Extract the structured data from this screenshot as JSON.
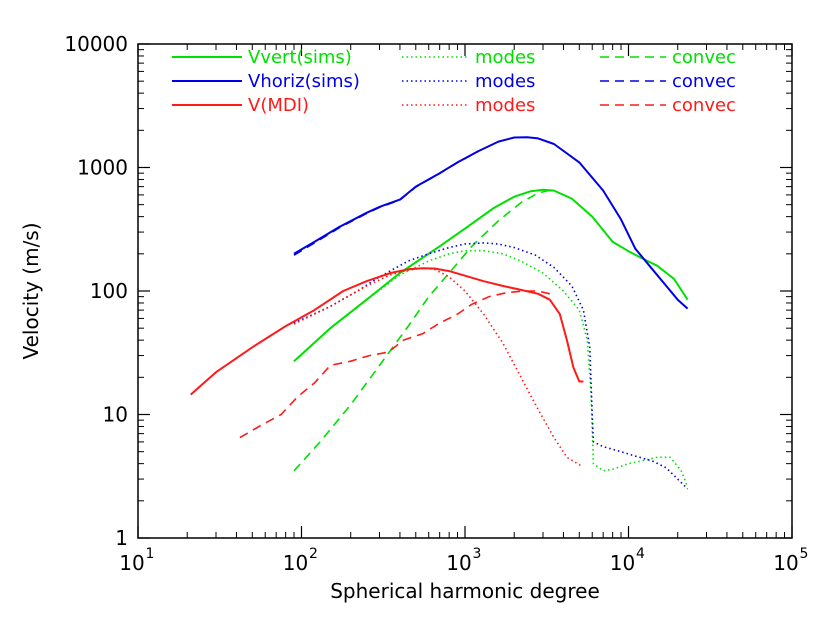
{
  "chart_data": {
    "type": "line",
    "xscale": "log",
    "yscale": "log",
    "xlim": [
      10,
      100000
    ],
    "ylim": [
      1,
      10000
    ],
    "xlabel": "Spherical harmonic degree",
    "ylabel": "Velocity (m/s)",
    "x_ticks": [
      {
        "value": 10,
        "base": "10",
        "exp": "1"
      },
      {
        "value": 100,
        "base": "10",
        "exp": "2"
      },
      {
        "value": 1000,
        "base": "10",
        "exp": "3"
      },
      {
        "value": 10000,
        "base": "10",
        "exp": "4"
      },
      {
        "value": 100000,
        "base": "10",
        "exp": "5"
      }
    ],
    "y_ticks": [
      {
        "value": 1,
        "label": "1"
      },
      {
        "value": 10,
        "label": "10"
      },
      {
        "value": 100,
        "label": "100"
      },
      {
        "value": 1000,
        "label": "1000"
      },
      {
        "value": 10000,
        "label": "10000"
      }
    ],
    "legend": {
      "placement": "top-left",
      "rows": [
        {
          "color": "#00e000",
          "solid": "Vvert(sims)",
          "dotted": "modes",
          "dashed": "convec"
        },
        {
          "color": "#0000e6",
          "solid": "Vhoriz(sims)",
          "dotted": "modes",
          "dashed": "convec"
        },
        {
          "color": "#ff1a1a",
          "solid": "V(MDI)",
          "dotted": "modes",
          "dashed": "convec"
        }
      ]
    },
    "series": [
      {
        "name": "Vvert(sims)",
        "color": "#00e000",
        "style": "solid",
        "points": [
          [
            90,
            27
          ],
          [
            150,
            50
          ],
          [
            250,
            85
          ],
          [
            400,
            140
          ],
          [
            700,
            230
          ],
          [
            1000,
            320
          ],
          [
            1500,
            470
          ],
          [
            2000,
            580
          ],
          [
            2500,
            640
          ],
          [
            3000,
            660
          ],
          [
            3500,
            650
          ],
          [
            4500,
            560
          ],
          [
            6000,
            400
          ],
          [
            8000,
            250
          ],
          [
            10000,
            210
          ],
          [
            12000,
            185
          ],
          [
            15000,
            160
          ],
          [
            19000,
            125
          ],
          [
            23000,
            85
          ]
        ]
      },
      {
        "name": "Vvert modes",
        "color": "#00e000",
        "style": "dotted",
        "points": [
          [
            90,
            27
          ],
          [
            150,
            50
          ],
          [
            250,
            85
          ],
          [
            400,
            135
          ],
          [
            600,
            175
          ],
          [
            800,
            200
          ],
          [
            1000,
            212
          ],
          [
            1300,
            212
          ],
          [
            1700,
            200
          ],
          [
            2200,
            175
          ],
          [
            3000,
            140
          ],
          [
            4000,
            100
          ],
          [
            5000,
            70
          ],
          [
            5600,
            40
          ],
          [
            5900,
            15
          ],
          [
            6100,
            4.0
          ],
          [
            7000,
            3.5
          ],
          [
            8000,
            3.6
          ],
          [
            10000,
            4.0
          ],
          [
            12000,
            4.2
          ],
          [
            15000,
            4.5
          ],
          [
            18000,
            4.5
          ],
          [
            21000,
            3.5
          ],
          [
            23000,
            2.6
          ]
        ]
      },
      {
        "name": "Vvert convec",
        "color": "#00e000",
        "style": "dashed",
        "points": [
          [
            90,
            3.5
          ],
          [
            130,
            6
          ],
          [
            200,
            12
          ],
          [
            300,
            25
          ],
          [
            450,
            52
          ],
          [
            600,
            90
          ],
          [
            800,
            140
          ],
          [
            1100,
            230
          ],
          [
            1600,
            370
          ],
          [
            2200,
            520
          ],
          [
            2800,
            620
          ],
          [
            3300,
            655
          ]
        ]
      },
      {
        "name": "Vhoriz(sims)",
        "color": "#0000e6",
        "style": "solid",
        "points": [
          [
            90,
            200
          ],
          [
            120,
            250
          ],
          [
            170,
            330
          ],
          [
            250,
            430
          ],
          [
            300,
            480
          ],
          [
            400,
            550
          ],
          [
            500,
            700
          ],
          [
            700,
            900
          ],
          [
            900,
            1100
          ],
          [
            1200,
            1350
          ],
          [
            1600,
            1620
          ],
          [
            2000,
            1750
          ],
          [
            2400,
            1760
          ],
          [
            2800,
            1720
          ],
          [
            3500,
            1550
          ],
          [
            5000,
            1100
          ],
          [
            7000,
            650
          ],
          [
            9000,
            380
          ],
          [
            11000,
            220
          ],
          [
            14000,
            150
          ],
          [
            17000,
            110
          ],
          [
            20000,
            85
          ],
          [
            23000,
            72
          ]
        ]
      },
      {
        "name": "Vhoriz modes",
        "color": "#0000e6",
        "style": "dotted",
        "points": [
          [
            90,
            55
          ],
          [
            150,
            75
          ],
          [
            220,
            100
          ],
          [
            300,
            130
          ],
          [
            450,
            175
          ],
          [
            600,
            200
          ],
          [
            800,
            225
          ],
          [
            1000,
            240
          ],
          [
            1300,
            245
          ],
          [
            1600,
            240
          ],
          [
            2000,
            225
          ],
          [
            2700,
            195
          ],
          [
            3500,
            155
          ],
          [
            4500,
            110
          ],
          [
            5300,
            70
          ],
          [
            5800,
            35
          ],
          [
            6000,
            10
          ],
          [
            6100,
            6
          ],
          [
            7000,
            5.5
          ],
          [
            9000,
            5.0
          ],
          [
            11000,
            4.6
          ],
          [
            14000,
            4.2
          ],
          [
            17000,
            3.7
          ],
          [
            20000,
            3.0
          ],
          [
            23000,
            2.5
          ]
        ]
      },
      {
        "name": "Vhoriz convec",
        "color": "#0000e6",
        "style": "dashed",
        "points": [
          [
            90,
            195
          ],
          [
            120,
            245
          ],
          [
            170,
            325
          ],
          [
            250,
            425
          ],
          [
            300,
            475
          ],
          [
            400,
            545
          ],
          [
            500,
            695
          ],
          [
            700,
            895
          ],
          [
            900,
            1095
          ],
          [
            1200,
            1345
          ]
        ]
      },
      {
        "name": "V(MDI)",
        "color": "#ff1a1a",
        "style": "solid",
        "points": [
          [
            21,
            14.5
          ],
          [
            30,
            22
          ],
          [
            50,
            35
          ],
          [
            80,
            52
          ],
          [
            120,
            70
          ],
          [
            180,
            100
          ],
          [
            250,
            120
          ],
          [
            350,
            140
          ],
          [
            450,
            150
          ],
          [
            550,
            153
          ],
          [
            650,
            152
          ],
          [
            800,
            145
          ],
          [
            1000,
            133
          ],
          [
            1300,
            120
          ],
          [
            1700,
            110
          ],
          [
            2200,
            102
          ],
          [
            2800,
            95
          ],
          [
            3300,
            85
          ],
          [
            3800,
            65
          ],
          [
            4200,
            40
          ],
          [
            4600,
            24
          ],
          [
            5000,
            18.5
          ],
          [
            5300,
            18.5
          ]
        ]
      },
      {
        "name": "V(MDI) modes",
        "color": "#ff1a1a",
        "style": "dotted",
        "points": [
          [
            90,
            54
          ],
          [
            150,
            75
          ],
          [
            250,
            110
          ],
          [
            350,
            135
          ],
          [
            450,
            148
          ],
          [
            550,
            153
          ],
          [
            650,
            150
          ],
          [
            800,
            130
          ],
          [
            1000,
            100
          ],
          [
            1300,
            65
          ],
          [
            1700,
            38
          ],
          [
            2200,
            20
          ],
          [
            2800,
            11
          ],
          [
            3500,
            6.5
          ],
          [
            4200,
            4.5
          ],
          [
            5200,
            3.8
          ]
        ]
      },
      {
        "name": "V(MDI) convec",
        "color": "#ff1a1a",
        "style": "dashed",
        "points": [
          [
            42,
            6.5
          ],
          [
            55,
            8
          ],
          [
            75,
            10
          ],
          [
            95,
            14
          ],
          [
            120,
            18
          ],
          [
            150,
            25
          ],
          [
            200,
            27
          ],
          [
            260,
            30
          ],
          [
            340,
            32
          ],
          [
            420,
            40
          ],
          [
            550,
            45
          ],
          [
            700,
            55
          ],
          [
            900,
            65
          ],
          [
            1100,
            78
          ],
          [
            1400,
            90
          ],
          [
            1800,
            97
          ],
          [
            2300,
            100
          ],
          [
            2800,
            100
          ],
          [
            3300,
            95
          ]
        ]
      }
    ]
  }
}
